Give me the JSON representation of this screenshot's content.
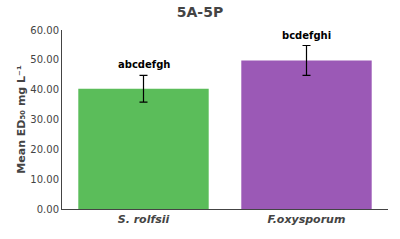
{
  "chart_data": {
    "type": "bar",
    "title": "5A-5P",
    "categories": [
      "S. rolfsii",
      "F.oxysporum"
    ],
    "values": [
      40.3,
      49.8
    ],
    "errors": [
      4.5,
      5.0
    ],
    "colors": [
      "#5BBD5A",
      "#9B59B6"
    ],
    "annotations": [
      "abcdefgh",
      "bcdefghi"
    ],
    "ylabel": "Mean ED₅₀ mg L⁻¹",
    "ylim": [
      0,
      60
    ],
    "yticks": [
      {
        "value": 0,
        "label": "0.00"
      },
      {
        "value": 10,
        "label": "10.00"
      },
      {
        "value": 20,
        "label": "20.00"
      },
      {
        "value": 30,
        "label": "30.00"
      },
      {
        "value": 40,
        "label": "40.00"
      },
      {
        "value": 50,
        "label": "50.00"
      },
      {
        "value": 60,
        "label": "60.00"
      }
    ],
    "grid": false
  }
}
